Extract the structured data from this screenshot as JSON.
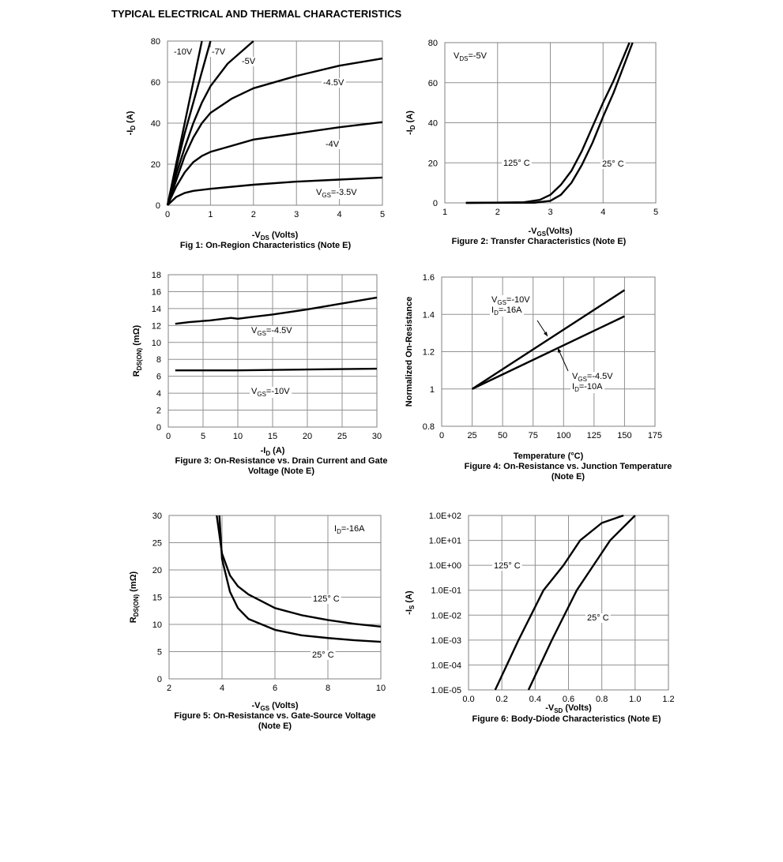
{
  "header": {
    "title": "TYPICAL ELECTRICAL AND THERMAL CHARACTERISTICS"
  },
  "chart_data": [
    {
      "type": "line",
      "caption": [
        "Fig 1: On-Region Characteristics (Note E)"
      ],
      "xlabel": [
        "-V",
        {
          "sub": "DS"
        },
        " (Volts)"
      ],
      "ylabel": [
        "-I",
        {
          "sub": "D"
        },
        " (A)"
      ],
      "xlim": [
        0,
        5
      ],
      "ylim": [
        0,
        80
      ],
      "xticks": [
        0,
        1,
        2,
        3,
        4,
        5
      ],
      "yticks": [
        0,
        20,
        40,
        60,
        80
      ],
      "grid": true,
      "series": [
        {
          "color": "#000000",
          "x": [
            0,
            0.2,
            0.4,
            0.6,
            0.8
          ],
          "values": [
            0,
            20,
            40,
            60,
            80
          ]
        },
        {
          "color": "#000000",
          "x": [
            0,
            0.2,
            0.4,
            0.6,
            0.8,
            1.0
          ],
          "values": [
            0,
            18,
            35,
            50,
            65,
            80
          ]
        },
        {
          "color": "#000000",
          "x": [
            0,
            0.2,
            0.4,
            0.6,
            0.8,
            1.0,
            1.4,
            2.0
          ],
          "values": [
            0,
            15,
            28,
            40,
            50,
            58,
            69,
            80
          ]
        },
        {
          "color": "#000000",
          "x": [
            0,
            0.2,
            0.4,
            0.6,
            0.8,
            1,
            1.5,
            2,
            3,
            4,
            5
          ],
          "values": [
            0,
            12,
            24,
            33,
            40,
            45,
            52,
            57,
            63,
            68,
            71.5
          ]
        },
        {
          "color": "#000000",
          "x": [
            0,
            0.2,
            0.4,
            0.6,
            0.8,
            1,
            1.5,
            2,
            3,
            4,
            5
          ],
          "values": [
            0,
            9,
            16,
            21,
            24,
            26,
            29,
            32,
            35,
            38,
            40.5
          ]
        },
        {
          "color": "#000000",
          "x": [
            0,
            0.2,
            0.4,
            0.6,
            1,
            2,
            3,
            4,
            5
          ],
          "values": [
            0,
            4,
            6,
            7,
            8,
            10,
            11.5,
            12.5,
            13.5
          ]
        }
      ],
      "annotations": [
        "-10V",
        "-7V",
        "-5V",
        "-4.5V",
        "-4V",
        [
          "V",
          {
            "sub": "GS"
          },
          "=-3.5V"
        ]
      ]
    },
    {
      "type": "line",
      "caption": [
        "Figure 2: Transfer Characteristics (Note E)"
      ],
      "xlabel": [
        "-V",
        {
          "sub": "GS"
        },
        "(Volts)"
      ],
      "ylabel": [
        "-I",
        {
          "sub": "D"
        },
        " (A)"
      ],
      "xlim": [
        1,
        5
      ],
      "ylim": [
        0,
        80
      ],
      "xticks": [
        1,
        2,
        3,
        4,
        5
      ],
      "yticks": [
        0,
        20,
        40,
        60,
        80
      ],
      "grid": true,
      "series": [
        {
          "color": "#000000",
          "x": [
            1.4,
            2.5,
            2.8,
            3,
            3.2,
            3.4,
            3.6,
            3.8,
            4,
            4.2,
            4.5
          ],
          "values": [
            0,
            0.3,
            1.5,
            4,
            9,
            16,
            26,
            38,
            50,
            61,
            80
          ]
        },
        {
          "color": "#000000",
          "x": [
            1.4,
            2.7,
            3,
            3.2,
            3.4,
            3.6,
            3.8,
            4,
            4.2,
            4.56
          ],
          "values": [
            0,
            0.1,
            1,
            4,
            10,
            19,
            30,
            43,
            55,
            80
          ]
        }
      ],
      "annotations": [
        [
          "V",
          {
            "sub": "DS"
          },
          "=-5V"
        ],
        "125° C",
        "25° C"
      ]
    },
    {
      "type": "line",
      "caption": [
        "Figure 3: On-Resistance vs. Drain Current and Gate",
        "Voltage (Note E)"
      ],
      "xlabel": [
        "-I",
        {
          "sub": "D"
        },
        " (A)"
      ],
      "ylabel": [
        "R",
        {
          "sub": "DS(ON)"
        },
        " (mΩ)"
      ],
      "xlim": [
        0,
        30
      ],
      "ylim": [
        0,
        18
      ],
      "xticks": [
        0,
        5,
        10,
        15,
        20,
        25,
        30
      ],
      "yticks": [
        0,
        2,
        4,
        6,
        8,
        10,
        12,
        14,
        16,
        18
      ],
      "grid": true,
      "series": [
        {
          "color": "#000000",
          "x": [
            1,
            3,
            6,
            9,
            10,
            12,
            15,
            20,
            25,
            30
          ],
          "values": [
            12.2,
            12.4,
            12.6,
            12.9,
            12.8,
            13,
            13.3,
            13.9,
            14.6,
            15.3
          ]
        },
        {
          "color": "#000000",
          "x": [
            1,
            10,
            20,
            30
          ],
          "values": [
            6.7,
            6.7,
            6.8,
            6.9
          ]
        }
      ],
      "annotations": [
        [
          "V",
          {
            "sub": "GS"
          },
          "=-4.5V"
        ],
        [
          "V",
          {
            "sub": "GS"
          },
          "=-10V"
        ]
      ]
    },
    {
      "type": "line",
      "caption": [
        "Figure 4: On-Resistance vs. Junction Temperature",
        "(Note E)"
      ],
      "xlabel": [
        "Temperature (°C)"
      ],
      "ylabel": [
        "Normalized On-Resistance"
      ],
      "xlim": [
        0,
        175
      ],
      "ylim": [
        0.8,
        1.6
      ],
      "xticks": [
        0,
        25,
        50,
        75,
        100,
        125,
        150,
        175
      ],
      "yticks": [
        0.8,
        1,
        1.2,
        1.4,
        1.6
      ],
      "grid": true,
      "series": [
        {
          "color": "#000000",
          "x": [
            25,
            150
          ],
          "values": [
            1,
            1.53
          ]
        },
        {
          "color": "#000000",
          "x": [
            25,
            150
          ],
          "values": [
            1,
            1.39
          ]
        }
      ],
      "annotations": [
        [
          "V",
          {
            "sub": "GS"
          },
          "=-10V"
        ],
        [
          "I",
          {
            "sub": "D"
          },
          "=-16A"
        ],
        [
          "V",
          {
            "sub": "GS"
          },
          "=-4.5V"
        ],
        [
          "I",
          {
            "sub": "D"
          },
          "=-10A"
        ]
      ]
    },
    {
      "type": "line",
      "caption": [
        "Figure 5: On-Resistance vs. Gate-Source Voltage",
        "(Note E)"
      ],
      "xlabel": [
        "-V",
        {
          "sub": "GS"
        },
        " (Volts)"
      ],
      "ylabel": [
        "R",
        {
          "sub": "DS(ON)"
        },
        " (mΩ)"
      ],
      "xlim": [
        2,
        10
      ],
      "ylim": [
        0,
        30
      ],
      "xticks": [
        2,
        4,
        6,
        8,
        10
      ],
      "yticks": [
        0,
        5,
        10,
        15,
        20,
        25,
        30
      ],
      "grid": true,
      "series": [
        {
          "color": "#000000",
          "x": [
            3.8,
            4,
            4.3,
            4.6,
            5,
            6,
            7,
            8,
            9,
            10
          ],
          "values": [
            30,
            23,
            19,
            17,
            15.5,
            13,
            11.7,
            10.8,
            10.1,
            9.6
          ]
        },
        {
          "color": "#000000",
          "x": [
            3.9,
            4,
            4.3,
            4.6,
            5,
            6,
            7,
            8,
            9,
            10
          ],
          "values": [
            30,
            22,
            16,
            13,
            11,
            9,
            8,
            7.5,
            7.1,
            6.8
          ]
        }
      ],
      "annotations": [
        [
          "I",
          {
            "sub": "D"
          },
          "=-16A"
        ],
        "125° C",
        "25° C"
      ]
    },
    {
      "type": "line",
      "caption": [
        "Figure 6: Body-Diode Characteristics (Note E)"
      ],
      "xlabel": [
        "-V",
        {
          "sub": "SD"
        },
        " (Volts)"
      ],
      "ylabel": [
        "-I",
        {
          "sub": "S"
        },
        " (A)"
      ],
      "log_y": true,
      "xlim": [
        0,
        1.2
      ],
      "ylim": [
        1e-05,
        100
      ],
      "xticks": [
        {
          "value": 0,
          "label": "0.0"
        },
        0.2,
        0.4,
        0.6,
        0.8,
        {
          "value": 1,
          "label": "1.0"
        },
        1.2
      ],
      "yticks": [
        {
          "value": 1e-05,
          "label": "1.0E-05"
        },
        {
          "value": 0.0001,
          "label": "1.0E-04"
        },
        {
          "value": 0.001,
          "label": "1.0E-03"
        },
        {
          "value": 0.01,
          "label": "1.0E-02"
        },
        {
          "value": 0.1,
          "label": "1.0E-01"
        },
        {
          "value": 1,
          "label": "1.0E+00"
        },
        {
          "value": 10,
          "label": "1.0E+01"
        },
        {
          "value": 100,
          "label": "1.0E+02"
        }
      ],
      "grid": true,
      "series": [
        {
          "color": "#000000",
          "x": [
            0.16,
            0.3,
            0.45,
            0.57,
            0.67,
            0.8,
            0.93
          ],
          "values": [
            1e-05,
            0.001,
            0.1,
            1,
            10,
            50,
            100
          ]
        },
        {
          "color": "#000000",
          "x": [
            0.36,
            0.5,
            0.65,
            0.75,
            0.85,
            1.0
          ],
          "values": [
            1e-05,
            0.001,
            0.1,
            1,
            10,
            100
          ]
        }
      ],
      "annotations": [
        "125° C",
        "25° C"
      ]
    }
  ]
}
